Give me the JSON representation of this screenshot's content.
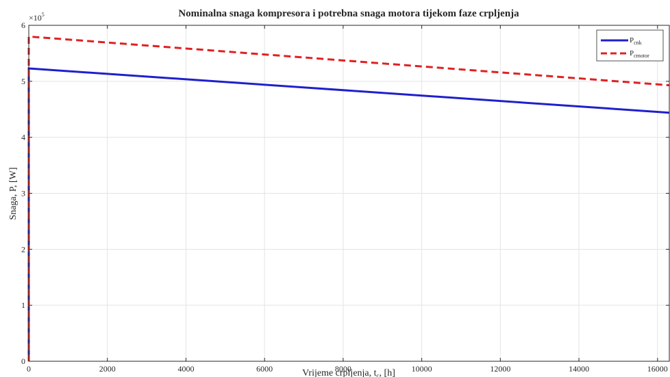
{
  "chart_data": {
    "type": "line",
    "title": "Nominalna snaga kompresora i potrebna snaga motora tijekom faze crpljenja",
    "xlabel": {
      "main": "Vrijeme crpljenja, t",
      "sub": "c",
      "unit": ", [h]"
    },
    "ylabel": "Snaga, P, [W]",
    "y_exponent": {
      "base": "×10",
      "power": "5"
    },
    "xlim": [
      0,
      16300
    ],
    "ylim": [
      0,
      6
    ],
    "x_ticks": [
      0,
      2000,
      4000,
      6000,
      8000,
      10000,
      12000,
      14000,
      16000
    ],
    "y_ticks": [
      0,
      1,
      2,
      3,
      4,
      5,
      6
    ],
    "grid": true,
    "legend_position": "top-right",
    "series": [
      {
        "name": {
          "main": "P",
          "sub": "cnk"
        },
        "color": "#1f1fcc",
        "dash": "solid",
        "points": [
          [
            0,
            0
          ],
          [
            0,
            5.23
          ],
          [
            16300,
            4.44
          ]
        ]
      },
      {
        "name": {
          "main": "P",
          "sub": "cmotor"
        },
        "color": "#e02020",
        "dash": "dashed",
        "points": [
          [
            0,
            0
          ],
          [
            0,
            5.8
          ],
          [
            16300,
            4.93
          ]
        ]
      }
    ]
  }
}
